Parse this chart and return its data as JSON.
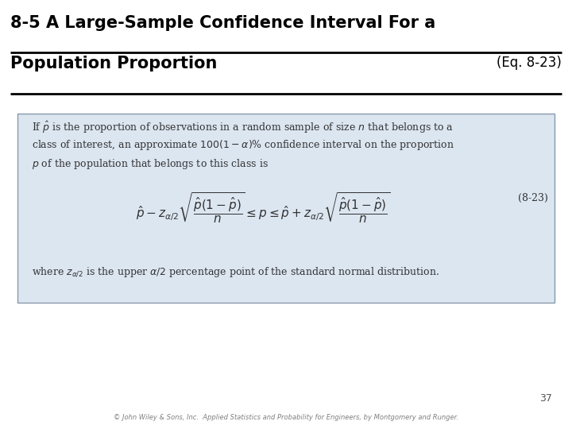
{
  "title_line1": "8-5 A Large-Sample Confidence Interval For a",
  "title_line2": "Population Proportion",
  "title_eq": "(Eq. 8-23)",
  "bg_color": "#ffffff",
  "box_bg_color": "#dce6f1",
  "box_border_color": "#8899aa",
  "title_color": "#000000",
  "body_text_color": "#333333",
  "page_number": "37",
  "footer_text": "© John Wiley & Sons, Inc.  Applied Statistics and Probability for Engineers, by Montgomery and Runger.",
  "line1_text": "If $\\hat{p}$ is the proportion of observations in a random sample of size $n$ that belongs to a",
  "line2_text": "class of interest, an approximate $100(1 - \\alpha)$% confidence interval on the proportion",
  "line3_text": "$p$ of the population that belongs to this class is",
  "equation": "$\\hat{p} - z_{\\alpha/2}\\sqrt{\\dfrac{\\hat{p}(1-\\hat{p})}{n}} \\leq p \\leq \\hat{p} + z_{\\alpha/2}\\sqrt{\\dfrac{\\hat{p}(1-\\hat{p})}{n}}$",
  "eq_label": "(8-23)",
  "where_text": "where $z_{\\alpha/2}$ is the upper $\\alpha/2$ percentage point of the standard normal distribution.",
  "title_fontsize": 15,
  "body_fontsize": 9,
  "eq_fontsize": 11,
  "eq_label_fontsize": 9
}
